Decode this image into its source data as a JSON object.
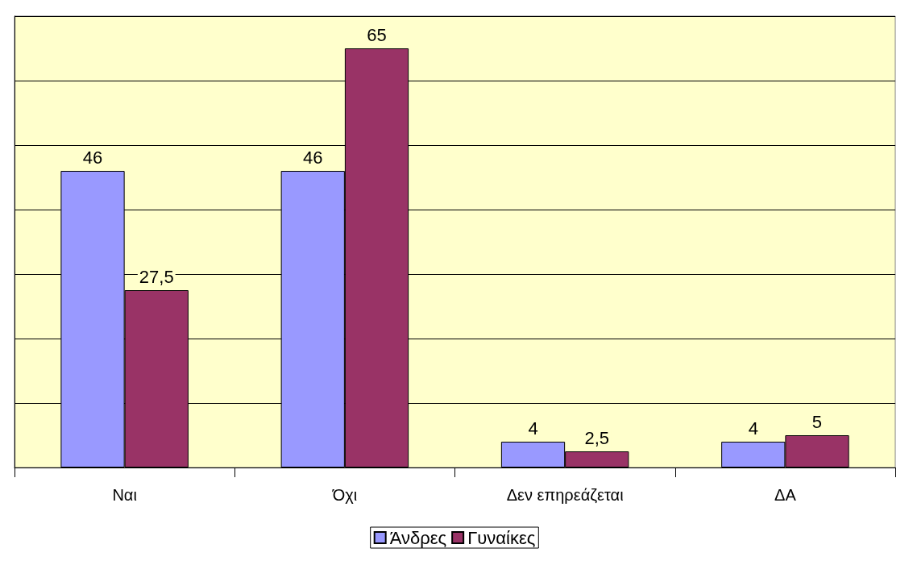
{
  "chart_data": {
    "type": "bar",
    "categories": [
      "Ναι",
      "Όχι",
      "Δεν επηρεάζεται",
      "ΔΑ"
    ],
    "series": [
      {
        "name": "Άνδρες",
        "color": "#9999ff",
        "values": [
          46,
          46,
          4,
          4
        ],
        "value_labels": [
          "46",
          "46",
          "4",
          "4"
        ]
      },
      {
        "name": "Γυναίκες",
        "color": "#993366",
        "values": [
          27.5,
          65,
          2.5,
          5
        ],
        "value_labels": [
          "27,5",
          "65",
          "2,5",
          "5"
        ]
      }
    ],
    "ylim": [
      0,
      70
    ],
    "yticks": [
      {
        "value": 0,
        "label": null
      },
      {
        "value": 10,
        "label": null
      },
      {
        "value": 20,
        "label": null
      },
      {
        "value": 30,
        "label": null
      },
      {
        "value": 40,
        "label": null
      },
      {
        "value": 50,
        "label": null
      },
      {
        "value": 60,
        "label": null
      },
      {
        "value": 70,
        "label": null
      }
    ],
    "tick_labels": "x",
    "grid": "y",
    "legend": "bottom"
  }
}
